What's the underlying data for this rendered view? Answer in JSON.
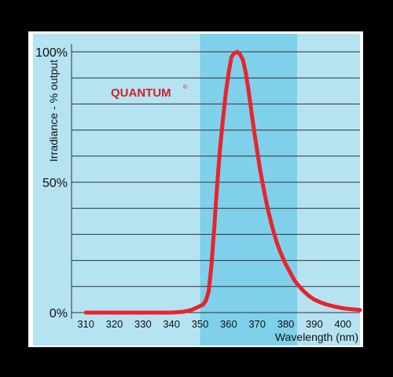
{
  "chart_data": {
    "type": "line",
    "title": "",
    "xlabel": "Wavelength (nm)",
    "ylabel": "Irradiance - % output",
    "xlim": [
      305,
      406
    ],
    "ylim": [
      0,
      100
    ],
    "x_ticks": [
      310,
      320,
      330,
      340,
      350,
      360,
      370,
      380,
      390,
      400
    ],
    "y_ticks": [
      {
        "value": 0,
        "label": "0%"
      },
      {
        "value": 50,
        "label": "50%"
      },
      {
        "value": 100,
        "label": "100%"
      }
    ],
    "grid": true,
    "highlight_band": {
      "x_start": 350,
      "x_end": 384
    },
    "brand_label": "QUANTUM",
    "brand_mark": "®",
    "series": [
      {
        "x": [
          310,
          320,
          330,
          340,
          344,
          347,
          349,
          351,
          352,
          353,
          354,
          355,
          356,
          357,
          358,
          359,
          360,
          361,
          362,
          363,
          364,
          365,
          366,
          367,
          368,
          369,
          370,
          371,
          372,
          373,
          374,
          375,
          376,
          377,
          378,
          379,
          380,
          381,
          382,
          383,
          384,
          386,
          388,
          390,
          392,
          394,
          396,
          398,
          400,
          402,
          404,
          406
        ],
        "y": [
          0,
          0,
          0,
          0,
          0.3,
          1,
          2,
          3,
          4.5,
          8,
          18,
          33,
          49,
          63,
          74,
          84,
          92,
          98,
          99.5,
          100,
          99,
          97,
          92,
          85,
          77,
          69,
          62,
          55,
          49,
          43.5,
          38.5,
          34,
          30,
          26.5,
          23.5,
          21,
          18.5,
          16.5,
          14.5,
          12.5,
          11,
          8.5,
          6.5,
          5,
          4,
          3.2,
          2.6,
          2.1,
          1.7,
          1.4,
          1.2,
          1.0
        ]
      }
    ]
  },
  "colors": {
    "line": "#e8242d",
    "band": "#7fd1eb",
    "panel": "#b5e3f2",
    "grid": "#333333",
    "brand": "#d0202c",
    "frame": "#000000"
  }
}
